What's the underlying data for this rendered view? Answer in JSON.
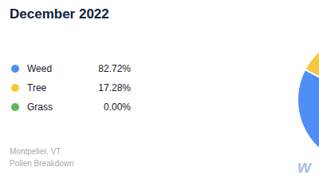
{
  "chart_data": {
    "type": "pie",
    "title": "December 2022",
    "subtitle": [
      "Montpelier, VT",
      "Pollen Breakdown"
    ],
    "categories": [
      "Weed",
      "Tree",
      "Grass"
    ],
    "values": [
      82.72,
      17.28,
      0.001
    ],
    "value_labels": [
      "82.72%",
      "17.28%",
      "0.00%"
    ],
    "colors": [
      "#4f8ef7",
      "#f5c842",
      "#5cb85c"
    ],
    "legend": "left",
    "annotations": [
      "w"
    ]
  }
}
